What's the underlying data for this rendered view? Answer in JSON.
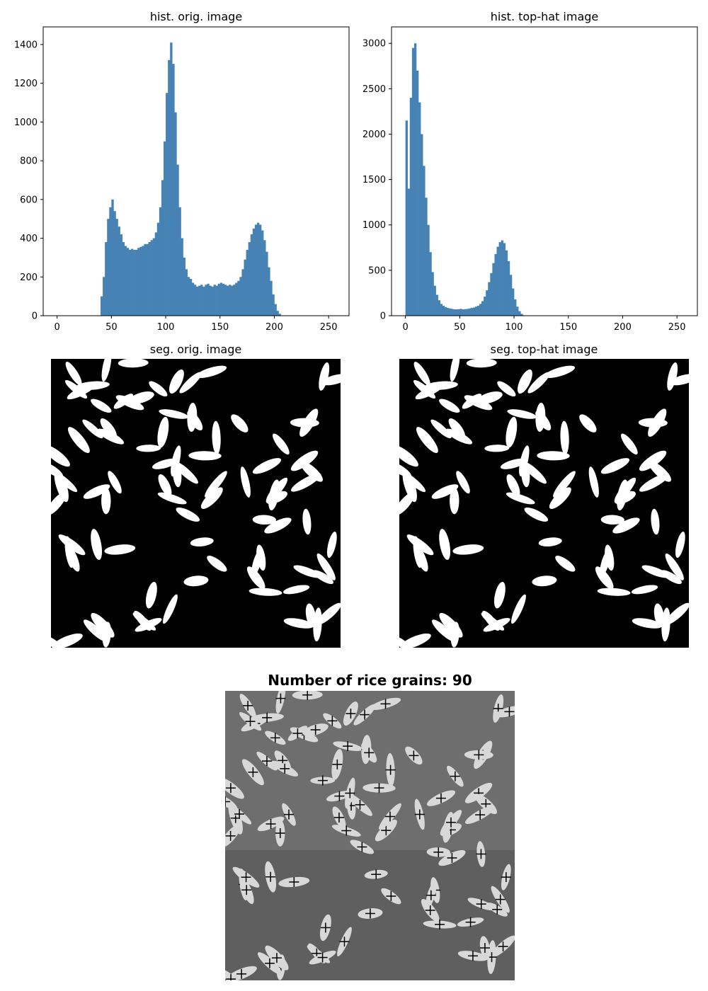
{
  "chart_data": [
    {
      "type": "histogram",
      "title": "hist. orig. image",
      "color": "#4682b4",
      "bins": [
        40,
        42,
        44,
        46,
        48,
        50,
        52,
        54,
        56,
        58,
        60,
        62,
        64,
        66,
        68,
        70,
        72,
        74,
        76,
        78,
        80,
        82,
        84,
        86,
        88,
        90,
        92,
        94,
        96,
        98,
        100,
        102,
        104,
        106,
        108,
        110,
        112,
        114,
        116,
        118,
        120,
        122,
        124,
        126,
        128,
        130,
        132,
        134,
        136,
        138,
        140,
        142,
        144,
        146,
        148,
        150,
        152,
        154,
        156,
        158,
        160,
        162,
        164,
        166,
        168,
        170,
        172,
        174,
        176,
        178,
        180,
        182,
        184,
        186,
        188,
        190,
        192,
        194,
        196,
        198,
        200,
        202,
        204,
        206
      ],
      "values": [
        100,
        200,
        380,
        500,
        560,
        600,
        540,
        500,
        460,
        420,
        380,
        360,
        350,
        340,
        345,
        340,
        340,
        350,
        355,
        360,
        370,
        370,
        380,
        390,
        400,
        430,
        480,
        560,
        700,
        900,
        1150,
        1320,
        1410,
        1300,
        1050,
        780,
        560,
        400,
        300,
        240,
        200,
        190,
        170,
        160,
        150,
        155,
        160,
        150,
        160,
        165,
        155,
        150,
        160,
        155,
        165,
        170,
        165,
        160,
        155,
        160,
        155,
        160,
        170,
        180,
        200,
        240,
        290,
        340,
        380,
        420,
        450,
        470,
        480,
        470,
        440,
        390,
        330,
        250,
        180,
        110,
        60,
        25,
        10
      ],
      "xlim": [
        -12.8,
        268.8
      ],
      "xticks": [
        0,
        50,
        100,
        150,
        200,
        250
      ],
      "ylim": [
        0,
        1491
      ],
      "yticks": [
        0,
        200,
        400,
        600,
        800,
        1000,
        1200,
        1400
      ]
    },
    {
      "type": "histogram",
      "title": "hist. top-hat image",
      "color": "#4682b4",
      "bins": [
        0,
        2,
        4,
        6,
        8,
        10,
        12,
        14,
        16,
        18,
        20,
        22,
        24,
        26,
        28,
        30,
        32,
        34,
        36,
        38,
        40,
        42,
        44,
        46,
        48,
        50,
        52,
        54,
        56,
        58,
        60,
        62,
        64,
        66,
        68,
        70,
        72,
        74,
        76,
        78,
        80,
        82,
        84,
        86,
        88,
        90,
        92,
        94,
        96,
        98,
        100,
        102,
        104,
        106,
        108,
        110
      ],
      "values": [
        2150,
        1400,
        2400,
        2950,
        3000,
        2700,
        2350,
        2000,
        1650,
        1300,
        1000,
        700,
        480,
        330,
        230,
        170,
        130,
        110,
        95,
        85,
        80,
        75,
        70,
        70,
        72,
        75,
        70,
        72,
        75,
        80,
        85,
        90,
        100,
        110,
        130,
        160,
        210,
        280,
        370,
        470,
        580,
        680,
        760,
        810,
        830,
        800,
        720,
        600,
        450,
        300,
        180,
        100,
        50,
        20,
        5
      ],
      "xlim": [
        -12.8,
        268.8
      ],
      "xticks": [
        0,
        50,
        100,
        150,
        200,
        250
      ],
      "ylim": [
        0,
        3181
      ],
      "yticks": [
        0,
        500,
        1000,
        1500,
        2000,
        2500,
        3000
      ]
    },
    {
      "type": "image",
      "title": "seg. orig. image"
    },
    {
      "type": "image",
      "title": "seg. top-hat image"
    },
    {
      "type": "image",
      "title": "Number of rice grains: 90"
    }
  ]
}
